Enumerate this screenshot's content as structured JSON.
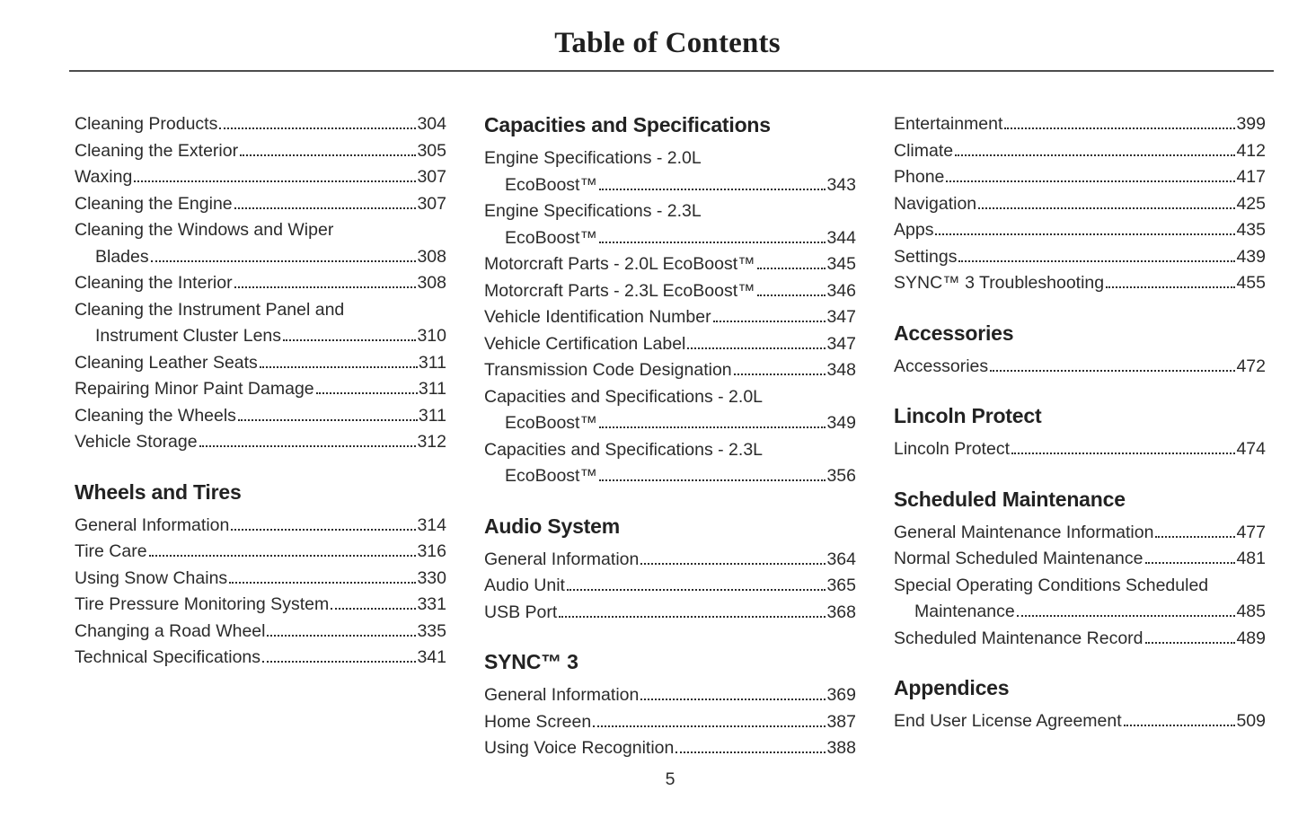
{
  "page": {
    "title": "Table of Contents",
    "page_number": "5",
    "text_color": "#2b2b2b",
    "rule_color": "#4d4d4d"
  },
  "columns": [
    {
      "sections": [
        {
          "entries": [
            {
              "text": "Cleaning Products",
              "page": "304"
            },
            {
              "text": "Cleaning the Exterior",
              "page": "305"
            },
            {
              "text": "Waxing",
              "page": "307"
            },
            {
              "text": "Cleaning the Engine",
              "page": "307"
            },
            {
              "text": "Cleaning the Windows and Wiper",
              "wrap": "Blades",
              "page": "308"
            },
            {
              "text": "Cleaning the Interior",
              "page": "308"
            },
            {
              "text": "Cleaning the Instrument Panel and",
              "wrap": "Instrument Cluster Lens",
              "page": "310"
            },
            {
              "text": "Cleaning Leather Seats",
              "page": "311"
            },
            {
              "text": "Repairing Minor Paint Damage",
              "page": "311"
            },
            {
              "text": "Cleaning the Wheels",
              "page": "311"
            },
            {
              "text": "Vehicle Storage",
              "page": "312"
            }
          ]
        },
        {
          "heading": "Wheels and Tires",
          "entries": [
            {
              "text": "General Information",
              "page": "314"
            },
            {
              "text": "Tire Care",
              "page": "316"
            },
            {
              "text": "Using Snow Chains",
              "page": "330"
            },
            {
              "text": "Tire Pressure Monitoring System",
              "page": "331"
            },
            {
              "text": "Changing a Road Wheel",
              "page": "335"
            },
            {
              "text": "Technical Specifications",
              "page": "341"
            }
          ]
        }
      ]
    },
    {
      "sections": [
        {
          "heading": "Capacities and Specifications",
          "entries": [
            {
              "text": "Engine Specifications - 2.0L",
              "wrap": "EcoBoost™",
              "page": "343"
            },
            {
              "text": "Engine Specifications - 2.3L",
              "wrap": "EcoBoost™",
              "page": "344"
            },
            {
              "text": "Motorcraft Parts - 2.0L EcoBoost™",
              "page": "345"
            },
            {
              "text": "Motorcraft Parts - 2.3L EcoBoost™",
              "page": "346"
            },
            {
              "text": "Vehicle Identification Number",
              "page": "347"
            },
            {
              "text": "Vehicle Certification Label",
              "page": "347"
            },
            {
              "text": "Transmission Code Designation",
              "page": "348"
            },
            {
              "text": "Capacities and Specifications - 2.0L",
              "wrap": "EcoBoost™",
              "page": "349"
            },
            {
              "text": "Capacities and Specifications - 2.3L",
              "wrap": "EcoBoost™",
              "page": "356"
            }
          ]
        },
        {
          "heading": "Audio System",
          "entries": [
            {
              "text": "General Information",
              "page": "364"
            },
            {
              "text": "Audio Unit",
              "page": "365"
            },
            {
              "text": "USB Port",
              "page": "368"
            }
          ]
        },
        {
          "heading": "SYNC™ 3",
          "entries": [
            {
              "text": "General Information",
              "page": "369"
            },
            {
              "text": "Home Screen",
              "page": "387"
            },
            {
              "text": "Using Voice Recognition",
              "page": "388"
            }
          ]
        }
      ]
    },
    {
      "sections": [
        {
          "entries": [
            {
              "text": "Entertainment",
              "page": "399"
            },
            {
              "text": "Climate",
              "page": "412"
            },
            {
              "text": "Phone",
              "page": "417"
            },
            {
              "text": "Navigation",
              "page": "425"
            },
            {
              "text": "Apps",
              "page": "435"
            },
            {
              "text": "Settings",
              "page": "439"
            },
            {
              "text": "SYNC™ 3 Troubleshooting",
              "page": "455"
            }
          ]
        },
        {
          "heading": "Accessories",
          "entries": [
            {
              "text": "Accessories",
              "page": "472"
            }
          ]
        },
        {
          "heading": "Lincoln Protect",
          "entries": [
            {
              "text": "Lincoln Protect",
              "page": "474"
            }
          ]
        },
        {
          "heading": "Scheduled Maintenance",
          "entries": [
            {
              "text": "General Maintenance Information",
              "page": "477"
            },
            {
              "text": "Normal Scheduled Maintenance",
              "page": "481"
            },
            {
              "text": "Special Operating Conditions Scheduled",
              "wrap": "Maintenance",
              "page": "485"
            },
            {
              "text": "Scheduled Maintenance Record",
              "page": "489"
            }
          ]
        },
        {
          "heading": "Appendices",
          "entries": [
            {
              "text": "End User License Agreement",
              "page": "509"
            }
          ]
        }
      ]
    }
  ]
}
